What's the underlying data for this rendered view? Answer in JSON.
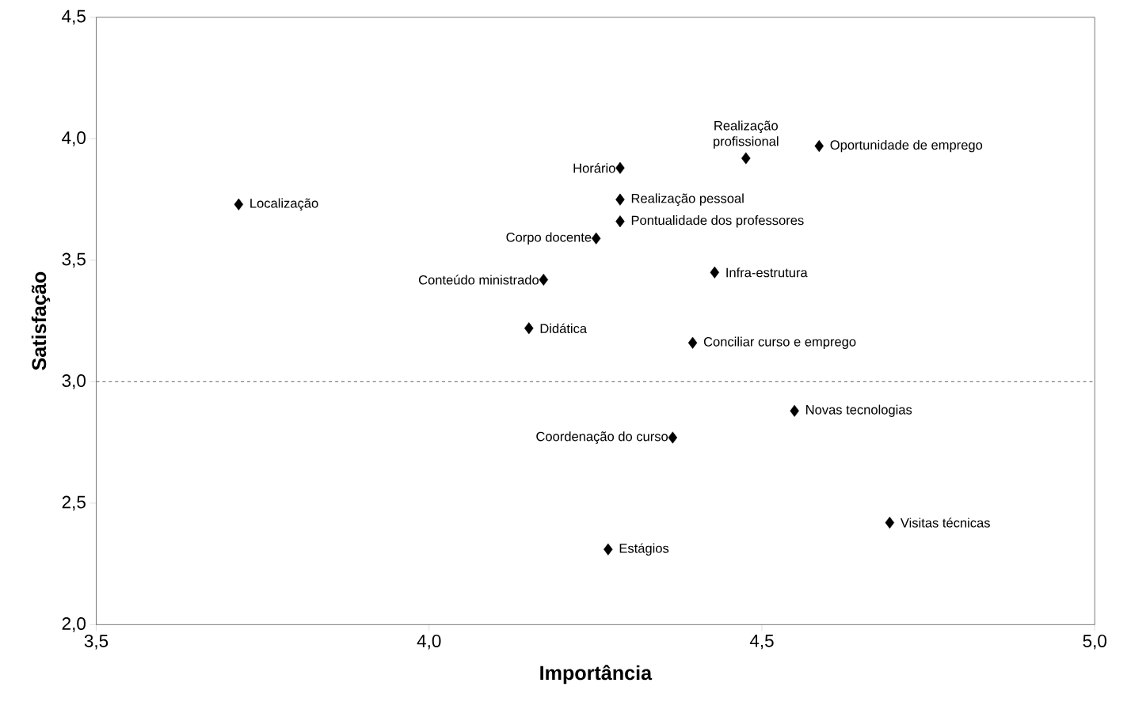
{
  "chart_data": {
    "type": "scatter",
    "xlabel": "Importância",
    "ylabel": "Satisfação",
    "x": [
      3.714,
      4.287,
      4.476,
      4.586,
      4.287,
      4.287,
      4.251,
      4.172,
      4.429,
      4.15,
      4.396,
      4.549,
      4.366,
      4.692,
      4.269
    ],
    "series": [
      {
        "color": "#000000",
        "values": [
          3.73,
          3.88,
          3.92,
          3.97,
          3.75,
          3.66,
          3.59,
          3.42,
          3.45,
          3.22,
          3.16,
          2.88,
          2.77,
          2.42,
          2.31
        ]
      }
    ],
    "marker": "diamond",
    "xlim": [
      3.5,
      5.0
    ],
    "ylim": [
      2.0,
      4.5
    ],
    "xticks": [
      {
        "value": 3.5,
        "label": "3,5"
      },
      {
        "value": 4.0,
        "label": "4,0"
      },
      {
        "value": 4.5,
        "label": "4,5"
      },
      {
        "value": 5.0,
        "label": "5,0"
      }
    ],
    "yticks": [
      {
        "value": 2.0,
        "label": "2,0"
      },
      {
        "value": 2.5,
        "label": "2,5"
      },
      {
        "value": 3.0,
        "label": "3,0"
      },
      {
        "value": 3.5,
        "label": "3,5"
      },
      {
        "value": 4.0,
        "label": "4,0"
      },
      {
        "value": 4.5,
        "label": "4,5"
      }
    ],
    "grid": false,
    "ref_lines": [
      {
        "axis": "y",
        "value": 3.0,
        "color": "#808080",
        "line_style": "dashed"
      }
    ],
    "annotations": [
      {
        "text": "Localização",
        "x": 3.714,
        "y": 3.73
      },
      {
        "text": "Horário",
        "x": 4.287,
        "y": 3.88
      },
      {
        "text": "Realização profissional",
        "x": 4.476,
        "y": 3.92
      },
      {
        "text": "Oportunidade de emprego",
        "x": 4.586,
        "y": 3.97
      },
      {
        "text": "Realização pessoal",
        "x": 4.287,
        "y": 3.75
      },
      {
        "text": "Pontualidade dos professores",
        "x": 4.287,
        "y": 3.66
      },
      {
        "text": "Corpo docente",
        "x": 4.251,
        "y": 3.59
      },
      {
        "text": "Conteúdo ministrado",
        "x": 4.172,
        "y": 3.42
      },
      {
        "text": "Infra-estrutura",
        "x": 4.429,
        "y": 3.45
      },
      {
        "text": "Didática",
        "x": 4.15,
        "y": 3.22
      },
      {
        "text": "Conciliar curso e emprego",
        "x": 4.396,
        "y": 3.16
      },
      {
        "text": "Novas tecnologias",
        "x": 4.549,
        "y": 2.88
      },
      {
        "text": "Coordenação do curso",
        "x": 4.366,
        "y": 2.77
      },
      {
        "text": "Visitas técnicas",
        "x": 4.692,
        "y": 2.42
      },
      {
        "text": "Estágios",
        "x": 4.269,
        "y": 2.31
      }
    ]
  }
}
